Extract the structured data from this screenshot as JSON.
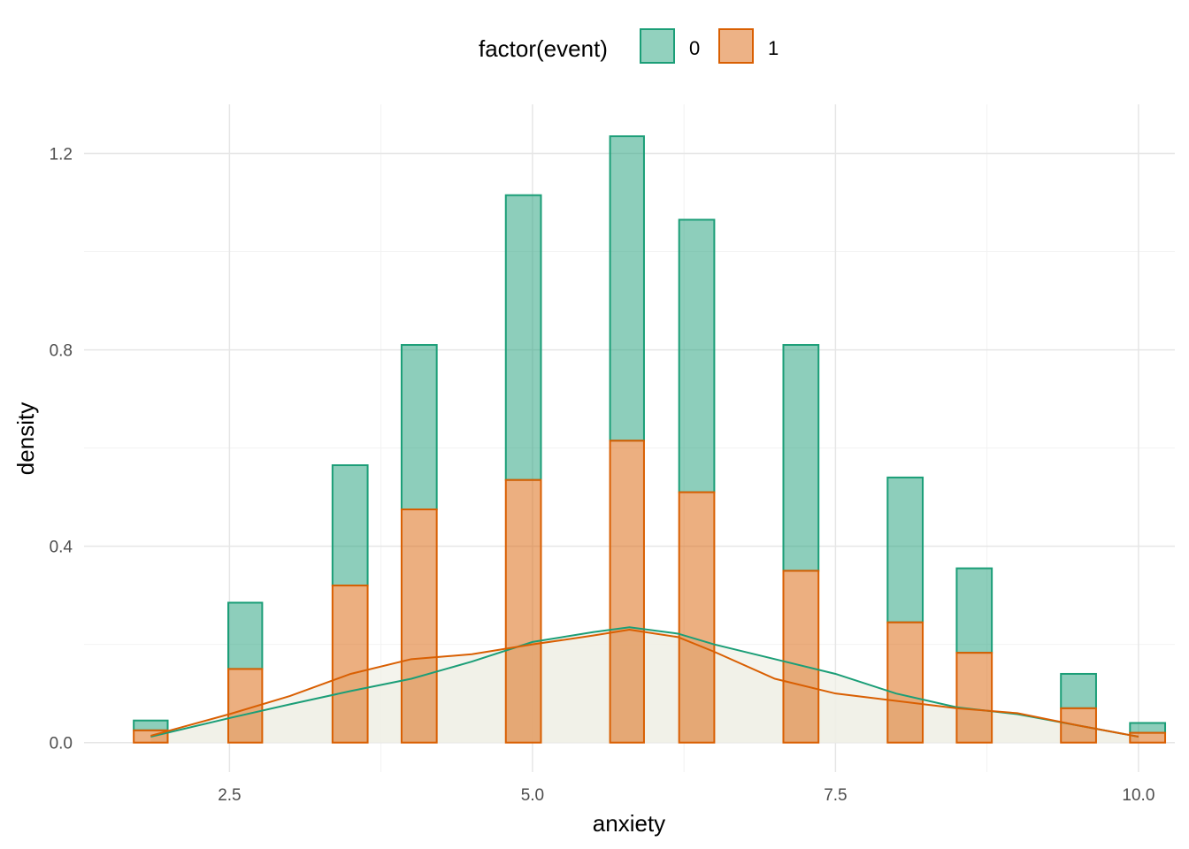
{
  "chart_data": {
    "type": "bar",
    "subtype": "overlaid histogram with density curves",
    "xlabel": "anxiety",
    "ylabel": "density",
    "xlim": [
      1.3,
      10.3
    ],
    "ylim": [
      -0.06,
      1.3
    ],
    "x_ticks": [
      2.5,
      5.0,
      7.5,
      10.0
    ],
    "x_tick_labels": [
      "2.5",
      "5.0",
      "7.5",
      "10.0"
    ],
    "y_ticks": [
      0.0,
      0.4,
      0.8,
      1.2
    ],
    "y_tick_labels": [
      "0.0",
      "0.4",
      "0.8",
      "1.2"
    ],
    "grid": true,
    "legend": {
      "title": "factor(event)",
      "placement": "top",
      "entries": [
        "0",
        "1"
      ]
    },
    "colors": {
      "0_fill": "#1b9e77",
      "0_line": "#1b9e77",
      "1_fill": "#d95f02",
      "1_line": "#d95f02",
      "density_fill": "#f0f0e6"
    },
    "bins": [
      {
        "xmin": 1.71,
        "xmax": 1.99
      },
      {
        "xmin": 2.49,
        "xmax": 2.77
      },
      {
        "xmin": 3.35,
        "xmax": 3.64
      },
      {
        "xmin": 3.92,
        "xmax": 4.21
      },
      {
        "xmin": 4.78,
        "xmax": 5.07
      },
      {
        "xmin": 5.64,
        "xmax": 5.92
      },
      {
        "xmin": 6.21,
        "xmax": 6.5
      },
      {
        "xmin": 7.07,
        "xmax": 7.36
      },
      {
        "xmin": 7.93,
        "xmax": 8.22
      },
      {
        "xmin": 8.5,
        "xmax": 8.79
      },
      {
        "xmin": 9.36,
        "xmax": 9.65
      },
      {
        "xmin": 9.93,
        "xmax": 10.22
      }
    ],
    "series": [
      {
        "name": "0",
        "values": [
          0.045,
          0.285,
          0.565,
          0.81,
          1.115,
          1.235,
          1.065,
          0.81,
          0.54,
          0.355,
          0.14,
          0.04
        ],
        "density": {
          "x": [
            1.85,
            2.5,
            3.0,
            3.5,
            4.0,
            4.5,
            5.0,
            5.5,
            5.8,
            6.2,
            6.5,
            7.0,
            7.5,
            8.0,
            8.5,
            9.0,
            9.5,
            10.0
          ],
          "y": [
            0.012,
            0.05,
            0.078,
            0.105,
            0.13,
            0.165,
            0.205,
            0.225,
            0.235,
            0.222,
            0.2,
            0.17,
            0.14,
            0.1,
            0.072,
            0.058,
            0.035,
            0.012
          ]
        }
      },
      {
        "name": "1",
        "values": [
          0.025,
          0.15,
          0.32,
          0.475,
          0.535,
          0.615,
          0.51,
          0.35,
          0.245,
          0.183,
          0.07,
          0.02
        ],
        "density": {
          "x": [
            1.85,
            2.5,
            3.0,
            3.5,
            4.0,
            4.5,
            5.0,
            5.5,
            5.8,
            6.2,
            6.5,
            7.0,
            7.5,
            8.0,
            8.5,
            9.0,
            9.5,
            10.0
          ],
          "y": [
            0.014,
            0.058,
            0.095,
            0.14,
            0.17,
            0.18,
            0.2,
            0.218,
            0.23,
            0.215,
            0.185,
            0.13,
            0.1,
            0.085,
            0.07,
            0.06,
            0.035,
            0.012
          ]
        }
      }
    ]
  }
}
